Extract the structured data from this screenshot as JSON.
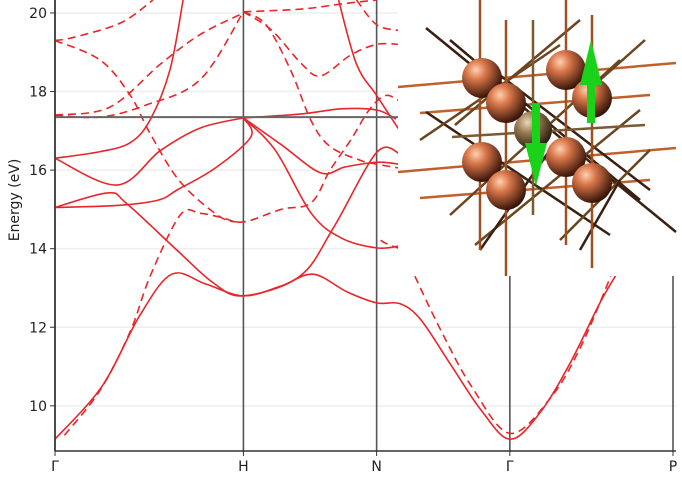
{
  "chart_data": {
    "type": "line",
    "title": "",
    "xlabel": "",
    "ylabel": "Energy (eV)",
    "ylim": [
      8.85,
      20.33
    ],
    "xlim": [
      0,
      3.28
    ],
    "yticks": [
      10,
      12,
      14,
      16,
      18,
      20
    ],
    "xticks": [
      {
        "label": "Γ",
        "k": 0
      },
      {
        "label": "H",
        "k": 1
      },
      {
        "label": "N",
        "k": 1.707
      },
      {
        "label": "Γ",
        "k": 2.414
      },
      {
        "label": "P",
        "k": 3.28
      }
    ],
    "grid": true,
    "fermi_level": 17.35,
    "series_color": "#e8262a",
    "bands": [
      {
        "style": "solid",
        "points": [
          [
            0,
            9.15
          ],
          [
            0.25,
            10.5
          ],
          [
            0.45,
            12.3
          ],
          [
            0.62,
            13.35
          ],
          [
            0.8,
            13.1
          ],
          [
            1,
            12.8
          ],
          [
            1.2,
            13.05
          ],
          [
            1.37,
            13.35
          ],
          [
            1.55,
            12.9
          ],
          [
            1.707,
            12.62
          ],
          [
            1.83,
            12.6
          ],
          [
            1.94,
            12.2
          ],
          [
            2.1,
            11.05
          ],
          [
            2.26,
            9.9
          ],
          [
            2.414,
            9.15
          ],
          [
            2.57,
            9.8
          ],
          [
            2.73,
            11.05
          ],
          [
            2.89,
            12.6
          ],
          [
            2.98,
            13.35
          ]
        ]
      },
      {
        "style": "solid",
        "points": [
          [
            0,
            15.05
          ],
          [
            0.28,
            15.42
          ],
          [
            0.38,
            15.15
          ],
          [
            0.65,
            13.95
          ],
          [
            0.84,
            13.13
          ],
          [
            1,
            12.8
          ],
          [
            1.3,
            13.3
          ],
          [
            1.48,
            14.55
          ],
          [
            1.707,
            16.45
          ],
          [
            1.83,
            16.42
          ]
        ]
      },
      {
        "style": "solid",
        "points": [
          [
            0,
            15.05
          ],
          [
            0.33,
            15.1
          ],
          [
            0.55,
            15.24
          ],
          [
            0.65,
            15.5
          ],
          [
            0.85,
            16.05
          ],
          [
            1.04,
            16.85
          ],
          [
            1,
            17.33
          ]
        ]
      },
      {
        "style": "solid",
        "points": [
          [
            0,
            16.3
          ],
          [
            0.33,
            15.62
          ],
          [
            0.56,
            16.5
          ],
          [
            0.77,
            17.07
          ],
          [
            1,
            17.33
          ]
        ]
      },
      {
        "style": "solid",
        "points": [
          [
            0,
            16.3
          ],
          [
            0.24,
            16.47
          ],
          [
            0.4,
            16.7
          ],
          [
            0.505,
            17.28
          ],
          [
            0.61,
            18.55
          ],
          [
            0.68,
            20.33
          ]
        ]
      },
      {
        "style": "solid",
        "points": [
          [
            1,
            17.33
          ],
          [
            1.31,
            17.43
          ],
          [
            1.52,
            17.56
          ],
          [
            1.707,
            17.53
          ],
          [
            1.81,
            17.3
          ]
        ]
      },
      {
        "style": "solid",
        "points": [
          [
            1,
            17.33
          ],
          [
            1.2,
            16.65
          ],
          [
            1.41,
            15.93
          ],
          [
            1.54,
            16.08
          ],
          [
            1.707,
            16.2
          ],
          [
            1.83,
            16.15
          ]
        ]
      },
      {
        "style": "solid",
        "points": [
          [
            1,
            17.33
          ],
          [
            1.17,
            16.5
          ],
          [
            1.36,
            14.9
          ],
          [
            1.52,
            14.27
          ],
          [
            1.707,
            14.02
          ],
          [
            1.83,
            14.07
          ]
        ]
      },
      {
        "style": "solid",
        "points": [
          [
            1.505,
            20.33
          ],
          [
            1.6,
            18.7
          ],
          [
            1.707,
            17.9
          ],
          [
            1.83,
            17.0
          ]
        ]
      },
      {
        "style": "dashed",
        "points": [
          [
            0.05,
            9.25
          ],
          [
            0.24,
            10.4
          ],
          [
            0.4,
            11.9
          ],
          [
            0.505,
            13.3
          ],
          [
            0.665,
            14.86
          ],
          [
            0.77,
            14.9
          ],
          [
            0.88,
            14.8
          ],
          [
            1,
            14.68
          ],
          [
            1.2,
            15.0
          ],
          [
            1.36,
            15.17
          ],
          [
            1.46,
            16.0
          ],
          [
            1.57,
            16.77
          ],
          [
            1.67,
            17.55
          ],
          [
            1.755,
            17.9
          ],
          [
            1.83,
            17.75
          ]
        ]
      },
      {
        "style": "dashed",
        "points": [
          [
            1.83,
            14.0
          ],
          [
            1.75,
            14.15
          ],
          [
            1.707,
            14.3
          ]
        ]
      },
      {
        "style": "dashed",
        "points": [
          [
            1.91,
            13.3
          ],
          [
            2.05,
            11.9
          ],
          [
            2.21,
            10.5
          ],
          [
            2.414,
            9.3
          ],
          [
            2.63,
            10.2
          ],
          [
            2.79,
            11.5
          ],
          [
            2.95,
            13.3
          ]
        ]
      },
      {
        "style": "dashed",
        "points": [
          [
            0,
            17.4
          ],
          [
            0.24,
            17.35
          ],
          [
            0.48,
            17.65
          ],
          [
            0.77,
            18.3
          ],
          [
            1,
            20.03
          ]
        ]
      },
      {
        "style": "dashed",
        "points": [
          [
            0,
            17.4
          ],
          [
            0.29,
            17.6
          ],
          [
            0.56,
            18.7
          ],
          [
            0.77,
            19.45
          ],
          [
            1,
            20.0
          ]
        ]
      },
      {
        "style": "dashed",
        "points": [
          [
            0,
            19.3
          ],
          [
            0.24,
            18.8
          ],
          [
            0.4,
            17.9
          ],
          [
            0.505,
            16.93
          ],
          [
            0.665,
            15.7
          ],
          [
            0.88,
            14.8
          ],
          [
            1,
            14.68
          ]
        ]
      },
      {
        "style": "dashed",
        "points": [
          [
            0,
            19.3
          ],
          [
            0.1,
            19.38
          ],
          [
            0.35,
            19.75
          ],
          [
            0.52,
            20.33
          ]
        ]
      },
      {
        "style": "dashed",
        "points": [
          [
            1,
            20.03
          ],
          [
            1.15,
            19.56
          ],
          [
            1.31,
            18.7
          ],
          [
            1.41,
            18.4
          ],
          [
            1.57,
            18.93
          ],
          [
            1.707,
            19.2
          ],
          [
            1.83,
            19.2
          ]
        ]
      },
      {
        "style": "dashed",
        "points": [
          [
            1,
            20.03
          ],
          [
            1.12,
            19.7
          ],
          [
            1.25,
            18.55
          ],
          [
            1.36,
            17.25
          ],
          [
            1.46,
            16.6
          ],
          [
            1.62,
            16.25
          ],
          [
            1.707,
            16.15
          ],
          [
            1.83,
            16.05
          ]
        ]
      },
      {
        "style": "dashed",
        "points": [
          [
            1,
            20.03
          ],
          [
            1.31,
            20.1
          ],
          [
            1.52,
            20.23
          ],
          [
            1.707,
            20.33
          ]
        ]
      },
      {
        "style": "dashed",
        "points": [
          [
            1.6,
            20.33
          ],
          [
            1.707,
            19.7
          ],
          [
            1.83,
            19.55
          ]
        ]
      }
    ]
  },
  "inset": {
    "atom_color": "#d9774a",
    "center_atom_color": "#9a7b55",
    "spin_arrow_color": "#19d219",
    "spin_arrows": [
      "up",
      "down"
    ]
  }
}
